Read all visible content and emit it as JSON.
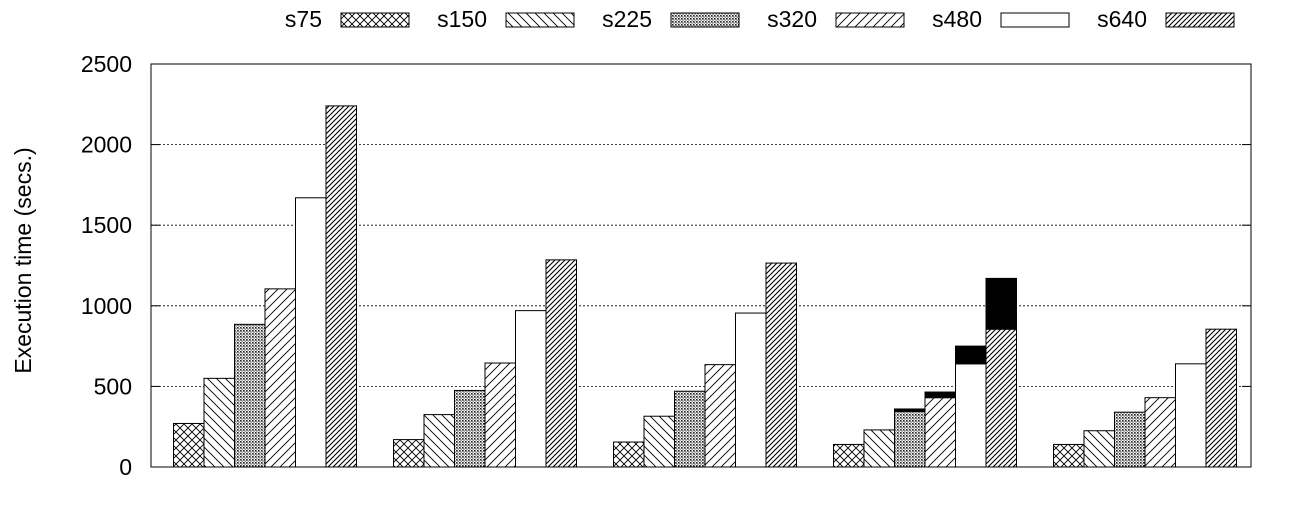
{
  "chart_data": {
    "type": "bar",
    "title": "",
    "xlabel": "",
    "ylabel": "Execution time (secs.)",
    "ylim": [
      0,
      2500
    ],
    "yticks": [
      0,
      500,
      1000,
      1500,
      2000,
      2500
    ],
    "grid": true,
    "legend_position": "top",
    "categories": [
      "",
      "",
      "",
      "",
      ""
    ],
    "series": [
      {
        "name": "s75",
        "pattern": "crosshatch",
        "values": [
          270,
          170,
          155,
          140,
          140
        ]
      },
      {
        "name": "s150",
        "pattern": "backslash",
        "values": [
          550,
          325,
          315,
          230,
          225
        ]
      },
      {
        "name": "s225",
        "pattern": "dense-dots",
        "values": [
          885,
          475,
          470,
          345,
          340
        ]
      },
      {
        "name": "s320",
        "pattern": "slash",
        "values": [
          1105,
          645,
          635,
          430,
          430
        ]
      },
      {
        "name": "s480",
        "pattern": "blank",
        "values": [
          1670,
          970,
          955,
          640,
          640
        ]
      },
      {
        "name": "s640",
        "pattern": "dense-slash",
        "values": [
          2240,
          1285,
          1265,
          855,
          855
        ]
      }
    ],
    "stacked_overhead": {
      "color": "#000000",
      "category_index": 3,
      "values": [
        0,
        0,
        15,
        35,
        110,
        315
      ]
    }
  }
}
